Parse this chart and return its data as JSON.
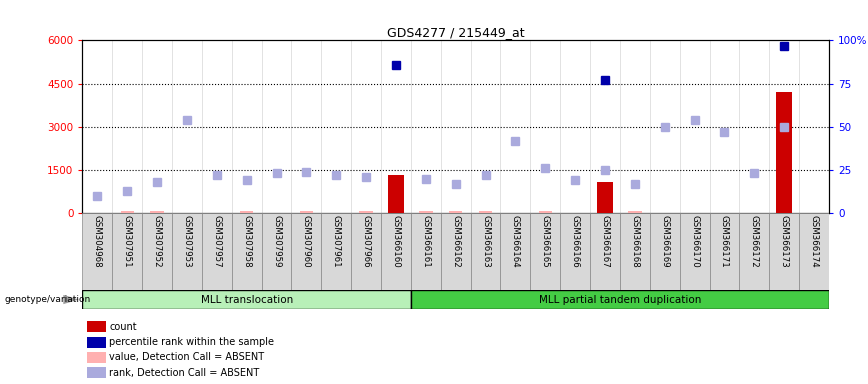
{
  "title": "GDS4277 / 215449_at",
  "samples": [
    "GSM304968",
    "GSM307951",
    "GSM307952",
    "GSM307953",
    "GSM307957",
    "GSM307958",
    "GSM307959",
    "GSM307960",
    "GSM307961",
    "GSM307966",
    "GSM366160",
    "GSM366161",
    "GSM366162",
    "GSM366163",
    "GSM366164",
    "GSM366165",
    "GSM366166",
    "GSM366167",
    "GSM366168",
    "GSM366169",
    "GSM366170",
    "GSM366171",
    "GSM366172",
    "GSM366173",
    "GSM366174"
  ],
  "group1_count": 11,
  "group2_count": 14,
  "group1_label": "MLL translocation",
  "group2_label": "MLL partial tandem duplication",
  "group1_color": "#b8f0b8",
  "group2_color": "#44cc44",
  "ylim_left": [
    0,
    6000
  ],
  "ylim_right": [
    0,
    100
  ],
  "yticks_left": [
    0,
    1500,
    3000,
    4500,
    6000
  ],
  "yticks_right": [
    0,
    25,
    50,
    75,
    100
  ],
  "red_bar_color": "#CC0000",
  "pink_bar_color": "#FFB0B0",
  "blue_sq_color": "#0000AA",
  "lightblue_sq_color": "#AAAADD",
  "count_pct": [
    0,
    0,
    0,
    0,
    0,
    0,
    0,
    0,
    0,
    0,
    22,
    0,
    0,
    0,
    0,
    0,
    0,
    18,
    0,
    0,
    0,
    0,
    0,
    70,
    0
  ],
  "pink_pct": [
    0,
    1,
    1,
    0,
    0,
    1.5,
    0,
    1.5,
    0,
    1.5,
    0,
    1,
    1,
    1,
    0,
    1,
    0,
    0,
    1,
    0,
    0,
    0,
    0,
    0,
    0
  ],
  "blue_pct": [
    -1,
    -1,
    -1,
    -1,
    -1,
    -1,
    -1,
    -1,
    -1,
    -1,
    86,
    -1,
    -1,
    -1,
    -1,
    -1,
    -1,
    77,
    -1,
    -1,
    -1,
    -1,
    -1,
    97,
    -1
  ],
  "lightblue_pct": [
    10,
    13,
    18,
    54,
    22,
    19,
    23,
    24,
    22,
    21,
    -1,
    20,
    17,
    22,
    42,
    26,
    19,
    25,
    17,
    50,
    54,
    47,
    23,
    50,
    -1
  ],
  "dotted_lines_pct": [
    25,
    50,
    75
  ],
  "legend_items": [
    {
      "label": "count",
      "color": "#CC0000"
    },
    {
      "label": "percentile rank within the sample",
      "color": "#0000AA"
    },
    {
      "label": "value, Detection Call = ABSENT",
      "color": "#FFB0B0"
    },
    {
      "label": "rank, Detection Call = ABSENT",
      "color": "#AAAADD"
    }
  ]
}
